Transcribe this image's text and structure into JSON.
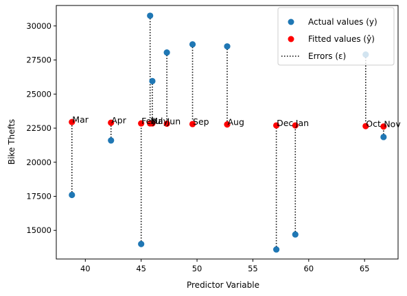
{
  "chart_data": {
    "type": "scatter",
    "xlabel": "Predictor Variable",
    "ylabel": "Bike Thefts",
    "xlim": [
      37.4,
      68.0
    ],
    "ylim": [
      12900,
      31500
    ],
    "xticks": [
      40,
      45,
      50,
      55,
      60,
      65
    ],
    "yticks": [
      15000,
      17500,
      20000,
      22500,
      25000,
      27500,
      30000
    ],
    "xtick_labels": [
      "40",
      "45",
      "50",
      "55",
      "60",
      "65"
    ],
    "ytick_labels": [
      "15000",
      "17500",
      "20000",
      "22500",
      "25000",
      "27500",
      "30000"
    ],
    "legend_position": "top-right",
    "legend": {
      "actual": "Actual values (y)",
      "fitted": "Fitted values (ŷ)",
      "errors": "Errors (ε)"
    },
    "colors": {
      "actual": "#1f77b4",
      "fitted": "#ff0000",
      "errors": "#000000"
    },
    "points": [
      {
        "month": "Mar",
        "x": 38.8,
        "actual": 17600,
        "fitted": 22950
      },
      {
        "month": "Apr",
        "x": 42.3,
        "actual": 21600,
        "fitted": 22900
      },
      {
        "month": "Feb",
        "x": 45.0,
        "actual": 14000,
        "fitted": 22850
      },
      {
        "month": "May",
        "x": 45.8,
        "actual": 30750,
        "fitted": 22850
      },
      {
        "month": "Jul",
        "x": 46.0,
        "actual": 25950,
        "fitted": 22850
      },
      {
        "month": "Jun",
        "x": 47.3,
        "actual": 28050,
        "fitted": 22830
      },
      {
        "month": "Sep",
        "x": 49.6,
        "actual": 28650,
        "fitted": 22800
      },
      {
        "month": "Aug",
        "x": 52.7,
        "actual": 28500,
        "fitted": 22770
      },
      {
        "month": "Dec",
        "x": 57.1,
        "actual": 13600,
        "fitted": 22700
      },
      {
        "month": "Jan",
        "x": 58.8,
        "actual": 14700,
        "fitted": 22700
      },
      {
        "month": "Oct",
        "x": 65.1,
        "actual": 27900,
        "fitted": 22650
      },
      {
        "month": "Nov",
        "x": 66.7,
        "actual": 21850,
        "fitted": 22620
      }
    ]
  }
}
